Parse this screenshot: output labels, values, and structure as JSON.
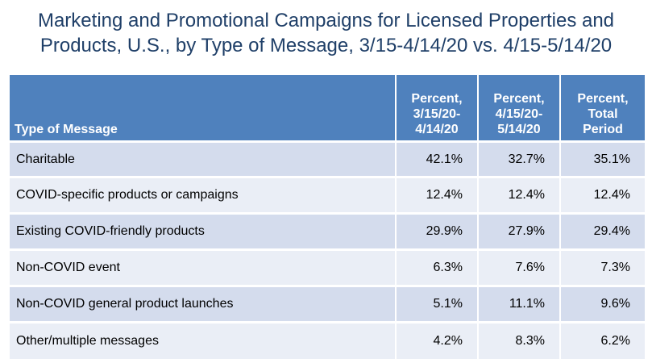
{
  "title_line1": "Marketing and Promotional Campaigns for Licensed Properties and",
  "title_line2": "Products, U.S., by Type of Message, 3/15-4/14/20 vs. 4/15-5/14/20",
  "colors": {
    "header_bg": "#4f81bd",
    "row_dark": "#d4dced",
    "row_light": "#eaeef6",
    "title": "#1f3f68"
  },
  "chart_data": {
    "type": "table",
    "title": "Marketing and Promotional Campaigns for Licensed Properties and Products, U.S., by Type of Message, 3/15-4/14/20 vs. 4/15-5/14/20",
    "columns": [
      {
        "lines": [
          "Type of Message"
        ]
      },
      {
        "lines": [
          "Percent,",
          "3/15/20-",
          "4/14/20"
        ]
      },
      {
        "lines": [
          "Percent,",
          "4/15/20-",
          "5/14/20"
        ]
      },
      {
        "lines": [
          "Percent,",
          "Total",
          "Period"
        ]
      }
    ],
    "rows": [
      {
        "label": "Charitable",
        "values": [
          "42.1%",
          "32.7%",
          "35.1%"
        ]
      },
      {
        "label": "COVID-specific products or campaigns",
        "values": [
          "12.4%",
          "12.4%",
          "12.4%"
        ]
      },
      {
        "label": "Existing COVID-friendly products",
        "values": [
          "29.9%",
          "27.9%",
          "29.4%"
        ]
      },
      {
        "label": "Non-COVID event",
        "values": [
          "6.3%",
          "7.6%",
          "7.3%"
        ]
      },
      {
        "label": "Non-COVID general product launches",
        "values": [
          "5.1%",
          "11.1%",
          "9.6%"
        ]
      },
      {
        "label": "Other/multiple messages",
        "values": [
          "4.2%",
          "8.3%",
          "6.2%"
        ]
      }
    ]
  }
}
